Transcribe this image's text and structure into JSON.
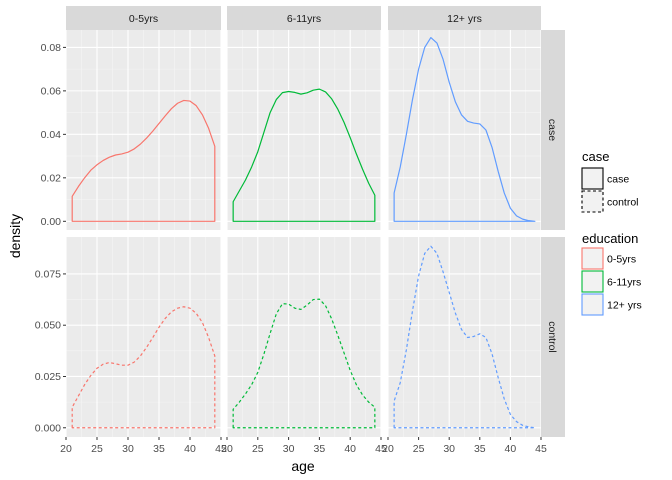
{
  "chart_data": {
    "type": "area",
    "xlabel": "age",
    "ylabel": "density",
    "x_ticks": [
      20,
      25,
      30,
      35,
      40,
      45
    ],
    "x_range": [
      20,
      45
    ],
    "grid": true,
    "legend_placement": "right",
    "col_facets": [
      "0-5yrs",
      "6-11yrs",
      "12+ yrs"
    ],
    "row_facets": [
      "case",
      "control"
    ],
    "rows": [
      {
        "facet": "case",
        "y_ticks": [
          0.0,
          0.02,
          0.04,
          0.06,
          0.08
        ],
        "y_tick_labels": [
          "0.00",
          "0.02",
          "0.04",
          "0.06",
          "0.08"
        ],
        "ylim": [
          -0.004,
          0.088
        ],
        "linetype": "solid"
      },
      {
        "facet": "control",
        "y_ticks": [
          0.0,
          0.025,
          0.05,
          0.075
        ],
        "y_tick_labels": [
          "0.000",
          "0.025",
          "0.050",
          "0.075"
        ],
        "ylim": [
          -0.0045,
          0.093
        ],
        "linetype": "dashed"
      }
    ],
    "legends": [
      {
        "title": "case",
        "kind": "linetype",
        "entries": [
          {
            "label": "case",
            "linetype": "solid"
          },
          {
            "label": "control",
            "linetype": "dashed"
          }
        ]
      },
      {
        "title": "education",
        "kind": "colour",
        "entries": [
          {
            "label": "0-5yrs",
            "color": "#F8766D"
          },
          {
            "label": "6-11yrs",
            "color": "#00BA38"
          },
          {
            "label": "12+ yrs",
            "color": "#619CFF"
          }
        ]
      }
    ],
    "series": [
      {
        "education": "0-5yrs",
        "case": "case",
        "color": "#F8766D",
        "linetype": "solid",
        "x": [
          21,
          22,
          23,
          24,
          25,
          26,
          27,
          28,
          29,
          30,
          31,
          32,
          33,
          34,
          35,
          36,
          37,
          38,
          39,
          40,
          41,
          42,
          43,
          44
        ],
        "y": [
          0.0115,
          0.016,
          0.02,
          0.0235,
          0.026,
          0.028,
          0.0295,
          0.0305,
          0.031,
          0.0318,
          0.0333,
          0.0355,
          0.0383,
          0.0415,
          0.045,
          0.0485,
          0.0518,
          0.0543,
          0.0556,
          0.0553,
          0.0532,
          0.049,
          0.0428,
          0.0345
        ]
      },
      {
        "education": "6-11yrs",
        "case": "case",
        "color": "#00BA38",
        "linetype": "solid",
        "x": [
          21,
          22,
          23,
          24,
          25,
          26,
          27,
          28,
          29,
          30,
          31,
          32,
          33,
          34,
          35,
          36,
          37,
          38,
          39,
          40,
          41,
          42,
          43,
          44
        ],
        "y": [
          0.009,
          0.014,
          0.019,
          0.025,
          0.032,
          0.041,
          0.05,
          0.056,
          0.0592,
          0.0597,
          0.0593,
          0.0585,
          0.0591,
          0.0603,
          0.0608,
          0.0595,
          0.0563,
          0.0515,
          0.0455,
          0.0385,
          0.031,
          0.024,
          0.0175,
          0.012
        ]
      },
      {
        "education": "12+ yrs",
        "case": "case",
        "color": "#619CFF",
        "linetype": "solid",
        "x": [
          21,
          22,
          23,
          24,
          25,
          26,
          27,
          28,
          29,
          30,
          31,
          32,
          33,
          34,
          35,
          36,
          37,
          38,
          39,
          40,
          41,
          42,
          43,
          44
        ],
        "y": [
          0.013,
          0.025,
          0.04,
          0.056,
          0.07,
          0.08,
          0.0845,
          0.082,
          0.0745,
          0.064,
          0.055,
          0.049,
          0.046,
          0.0452,
          0.0448,
          0.042,
          0.034,
          0.023,
          0.013,
          0.006,
          0.0025,
          0.001,
          0.0003,
          0.0
        ]
      },
      {
        "education": "0-5yrs",
        "case": "control",
        "color": "#F8766D",
        "linetype": "dashed",
        "x": [
          21,
          22,
          23,
          24,
          25,
          26,
          27,
          28,
          29,
          30,
          31,
          32,
          33,
          34,
          35,
          36,
          37,
          38,
          39,
          40,
          41,
          42,
          43,
          44
        ],
        "y": [
          0.01,
          0.0155,
          0.021,
          0.0255,
          0.029,
          0.031,
          0.0318,
          0.0312,
          0.0305,
          0.0305,
          0.032,
          0.035,
          0.0392,
          0.044,
          0.049,
          0.0533,
          0.0565,
          0.0583,
          0.059,
          0.0583,
          0.0558,
          0.0513,
          0.044,
          0.035
        ]
      },
      {
        "education": "6-11yrs",
        "case": "control",
        "color": "#00BA38",
        "linetype": "dashed",
        "x": [
          21,
          22,
          23,
          24,
          25,
          26,
          27,
          28,
          29,
          30,
          31,
          32,
          33,
          34,
          35,
          36,
          37,
          38,
          39,
          40,
          41,
          42,
          43,
          44
        ],
        "y": [
          0.009,
          0.0125,
          0.0165,
          0.021,
          0.027,
          0.036,
          0.046,
          0.0555,
          0.0605,
          0.0603,
          0.0583,
          0.0577,
          0.0598,
          0.0625,
          0.0627,
          0.0595,
          0.053,
          0.045,
          0.0365,
          0.028,
          0.021,
          0.016,
          0.0125,
          0.01
        ]
      },
      {
        "education": "12+ yrs",
        "case": "control",
        "color": "#619CFF",
        "linetype": "dashed",
        "x": [
          21,
          22,
          23,
          24,
          25,
          26,
          27,
          28,
          29,
          30,
          31,
          32,
          33,
          34,
          35,
          36,
          37,
          38,
          39,
          40,
          41,
          42,
          43,
          44
        ],
        "y": [
          0.013,
          0.022,
          0.038,
          0.057,
          0.074,
          0.085,
          0.0885,
          0.085,
          0.076,
          0.066,
          0.056,
          0.048,
          0.044,
          0.0445,
          0.0458,
          0.044,
          0.036,
          0.0245,
          0.014,
          0.0065,
          0.003,
          0.0012,
          0.0004,
          0.0
        ]
      }
    ]
  }
}
